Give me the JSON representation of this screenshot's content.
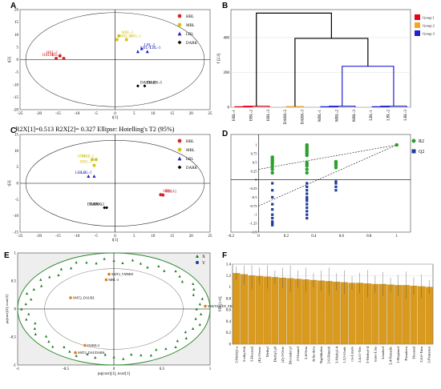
{
  "chart_data": [
    {
      "panel": "A",
      "type": "scatter",
      "ylabel": "t[2]",
      "xlabel": "t[1]",
      "xlim": [
        -25,
        25
      ],
      "ylim": [
        -20,
        20
      ],
      "xticks": [
        -25,
        -20,
        -15,
        -10,
        -5,
        0,
        5,
        10,
        15,
        20,
        25
      ],
      "yticks": [
        -20,
        -15,
        -10,
        -5,
        0,
        5,
        10,
        15,
        20
      ],
      "legend": [
        {
          "name": "HBL",
          "color": "#d62728",
          "marker": "circle"
        },
        {
          "name": "MBL",
          "color": "#d4c21a",
          "marker": "circle"
        },
        {
          "name": "LBL",
          "color": "#1f1fbf",
          "marker": "triangle"
        },
        {
          "name": "DARK",
          "color": "#000000",
          "marker": "diamond"
        }
      ],
      "points": [
        {
          "label": "HBL-1",
          "x": -15.5,
          "y": 0.5,
          "group": "HBL"
        },
        {
          "label": "HBL-2",
          "x": -14.5,
          "y": 1.5,
          "group": "HBL"
        },
        {
          "label": "HBL-3",
          "x": -13.5,
          "y": 0.5,
          "group": "HBL"
        },
        {
          "label": "MBL-1",
          "x": 1,
          "y": 9.5,
          "group": "MBL"
        },
        {
          "label": "MBL-3",
          "x": 0.5,
          "y": 8,
          "group": "MBL"
        },
        {
          "label": "MBL-2",
          "x": 3,
          "y": 8,
          "group": "MBL"
        },
        {
          "label": "LBL-2",
          "x": 7,
          "y": 4.5,
          "group": "LBL"
        },
        {
          "label": "LBL-1",
          "x": 6,
          "y": 3.3,
          "group": "LBL"
        },
        {
          "label": "LBL-3",
          "x": 8.5,
          "y": 3.3,
          "group": "LBL"
        },
        {
          "label": "DARK-2",
          "x": 6,
          "y": -10.5,
          "group": "DARK"
        },
        {
          "label": "DARK-3",
          "x": 7.8,
          "y": -10.5,
          "group": "DARK"
        }
      ]
    },
    {
      "panel": "B",
      "type": "dendrogram",
      "ylabel": "f [2.3]",
      "yticks": [
        0,
        200,
        400
      ],
      "ylim": [
        0,
        560
      ],
      "leaves": [
        "HBL-1",
        "HBL-2",
        "HBL-3",
        "DARK-2",
        "DARK-3",
        "MBL-1",
        "MBL-2",
        "MBL-3",
        "LBL-1",
        "LBL-2",
        "LBL-3"
      ],
      "legend": [
        {
          "name": "Group 1",
          "color": "#e8001c"
        },
        {
          "name": "Group 2",
          "color": "#f5a623"
        },
        {
          "name": "Group 3",
          "color": "#1f1fd6"
        }
      ]
    },
    {
      "panel": "C",
      "type": "scatter",
      "title": "R2X[1]=0.513   R2X[2]= 0.327   Ellipse: Hotelling's T2 (95%)",
      "ylabel": "t[2]",
      "xlabel": "t[1]",
      "xlim": [
        -25,
        25
      ],
      "ylim": [
        -15,
        15
      ],
      "xticks": [
        -25,
        -20,
        -15,
        -10,
        -5,
        0,
        5,
        10,
        15,
        20,
        25
      ],
      "yticks": [
        -15,
        -10,
        -5,
        0,
        5,
        10,
        15
      ],
      "legend": [
        {
          "name": "HBL",
          "color": "#d62728",
          "marker": "circle"
        },
        {
          "name": "MBL",
          "color": "#d4c21a",
          "marker": "circle"
        },
        {
          "name": "LBL",
          "color": "#1f1fbf",
          "marker": "triangle"
        },
        {
          "name": "DARK",
          "color": "#000000",
          "marker": "diamond"
        }
      ],
      "points": [
        {
          "label": "HBL-1",
          "x": 12,
          "y": -3.5,
          "group": "HBL"
        },
        {
          "label": "HBL-2",
          "x": 12.6,
          "y": -3.6,
          "group": "HBL"
        },
        {
          "label": "MBL-2",
          "x": -6,
          "y": 7.3,
          "group": "MBL"
        },
        {
          "label": "MBL-3",
          "x": -5,
          "y": 7.3,
          "group": "MBL"
        },
        {
          "label": "MBL-1",
          "x": -5.5,
          "y": 5.5,
          "group": "MBL"
        },
        {
          "label": "LBL-1",
          "x": -7,
          "y": 2.2,
          "group": "LBL"
        },
        {
          "label": "LBL-3",
          "x": -5.5,
          "y": 2.2,
          "group": "LBL"
        },
        {
          "label": "DARK-1",
          "x": -2.8,
          "y": -7.5,
          "group": "DARK"
        },
        {
          "label": "DARK-2",
          "x": -2.2,
          "y": -7.5,
          "group": "DARK"
        }
      ]
    },
    {
      "panel": "D",
      "type": "scatter",
      "xlim": [
        -0.2,
        1.1
      ],
      "ylim": [
        -1.5,
        1.3
      ],
      "xticks": [
        -0.2,
        0,
        0.2,
        0.4,
        0.6,
        0.8,
        1
      ],
      "yticks": [
        -1.5,
        -1.25,
        -1,
        -0.75,
        -0.5,
        -0.25,
        0,
        0.25,
        0.5,
        0.75,
        1
      ],
      "legend": [
        {
          "name": "R2",
          "color": "#2ca02c",
          "marker": "circle"
        },
        {
          "name": "Q2",
          "color": "#1f3c99",
          "marker": "square"
        }
      ],
      "series": [
        {
          "name": "R2",
          "x": [
            0.1,
            0.1,
            0.1,
            0.1,
            0.1,
            0.1,
            0.1,
            0.1,
            0.35,
            0.35,
            0.35,
            0.35,
            0.35,
            0.35,
            0.35,
            0.35,
            0.35,
            0.35,
            0.35,
            0.35,
            0.56,
            0.56,
            0.56,
            0.56,
            1
          ],
          "y": [
            0.2,
            0.3,
            0.38,
            0.45,
            0.5,
            0.55,
            0.6,
            0.65,
            0.2,
            0.3,
            0.4,
            0.45,
            0.5,
            0.7,
            0.75,
            0.8,
            0.85,
            0.9,
            0.95,
            1.0,
            0.35,
            0.42,
            0.48,
            0.52,
            1.0
          ]
        },
        {
          "name": "Q2",
          "x": [
            0.1,
            0.1,
            0.1,
            0.1,
            0.1,
            0.1,
            0.1,
            0.1,
            0.1,
            0.1,
            0.35,
            0.35,
            0.35,
            0.35,
            0.35,
            0.35,
            0.35,
            0.35,
            0.35,
            0.35,
            0.35,
            0.35,
            0.56,
            0.56,
            0.56,
            0.56,
            1
          ],
          "y": [
            -0.1,
            -0.3,
            -0.5,
            -0.7,
            -0.85,
            -1.0,
            -1.1,
            -1.2,
            -1.25,
            -1.3,
            -0.1,
            -0.2,
            -0.3,
            -0.4,
            -0.5,
            -0.55,
            -0.6,
            -0.7,
            -0.8,
            -0.9,
            -1.0,
            -1.1,
            -0.05,
            -0.1,
            -0.2,
            -0.3,
            1.0
          ]
        }
      ]
    },
    {
      "panel": "E",
      "type": "scatter",
      "ylabel": "pq(corr)[2], tcorr[2]",
      "xlabel": "pq(corr)[1], tcorr[1]",
      "xlim": [
        -1,
        1
      ],
      "ylim": [
        -1,
        1
      ],
      "xticks": [
        -1,
        -0.5,
        0,
        0.5,
        1
      ],
      "yticks": [
        -1,
        -0.5,
        0,
        0.5,
        1
      ],
      "legend": [
        {
          "name": "X",
          "color": "#1a7a1a",
          "marker": "triangle"
        },
        {
          "name": "Y",
          "color": "#1f3c99",
          "marker": "circle"
        }
      ],
      "labels": [
        {
          "text": "SMT2_YMMM",
          "x": -0.05,
          "y": 0.62,
          "group": "Y"
        },
        {
          "text": "MBL-3",
          "x": -0.08,
          "y": 0.52,
          "group": "Y"
        },
        {
          "text": "SMT2_DAUBL",
          "x": -0.45,
          "y": 0.2,
          "group": "Y"
        },
        {
          "text": "SM2TS_CEF_ZKCY",
          "x": 0.95,
          "y": 0.05,
          "group": "Y"
        },
        {
          "text": "DARK-2",
          "x": -0.3,
          "y": -0.65,
          "group": "Y"
        },
        {
          "text": "SMT2_DAUDARK",
          "x": -0.4,
          "y": -0.78,
          "group": "Y"
        }
      ]
    },
    {
      "panel": "F",
      "type": "bar",
      "ylabel": "VIP[1+0]",
      "ylim": [
        0,
        1.4
      ],
      "yticks": [
        0,
        0.2,
        0.4,
        0.6,
        0.8,
        1,
        1.2,
        1.4
      ],
      "color": "#d99a1e",
      "categories": [
        "2-Methyl-a",
        "5-ethyl-bh",
        "2-Hexanal",
        "(E)-2-hexe",
        "Methyl",
        "Diethyl p8",
        "(Z)-3-Octe",
        "Dioctadecyl",
        "2-Octanol",
        "2,4-Octa",
        "delta-deca",
        "Naphthalen",
        "2-6-Dimeth",
        "3-Methyl-4",
        "1,3,5-Undc",
        "cis-Linalo",
        "2,4,11-Tris",
        "3-Methyl-4",
        "trans-Lina",
        "Linalool",
        "2,4-Nonadie",
        "1-Heptanol",
        "Pseudocu",
        "Hexanal",
        "2,6,6-Trim",
        "2-Pentanen"
      ],
      "values": [
        1.24,
        1.22,
        1.2,
        1.19,
        1.18,
        1.17,
        1.16,
        1.15,
        1.14,
        1.13,
        1.12,
        1.11,
        1.1,
        1.09,
        1.08,
        1.07,
        1.07,
        1.06,
        1.05,
        1.05,
        1.04,
        1.03,
        1.03,
        1.02,
        1.01,
        1.0
      ]
    }
  ]
}
